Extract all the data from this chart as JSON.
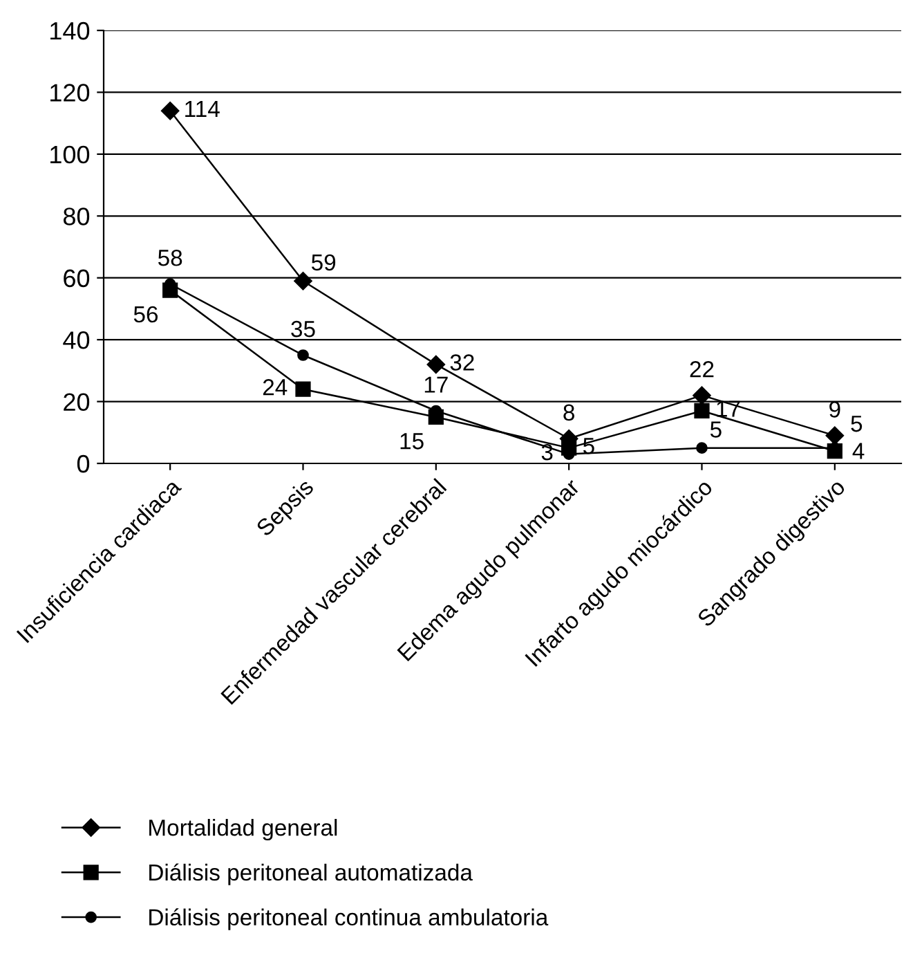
{
  "chart_data": {
    "type": "line",
    "categories": [
      "Insuficiencia cardiaca",
      "Sepsis",
      "Enfermedad vascular cerebral",
      "Edema agudo pulmonar",
      "Infarto agudo miocárdico",
      "Sangrado digestivo"
    ],
    "series": [
      {
        "name": "Mortalidad general",
        "color": "#000000",
        "marker": "diamond",
        "values": [
          114,
          59,
          32,
          8,
          22,
          9
        ]
      },
      {
        "name": "Diálisis peritoneal automatizada",
        "color": "#000000",
        "marker": "square",
        "values": [
          56,
          24,
          15,
          5,
          17,
          4
        ]
      },
      {
        "name": "Diálisis peritoneal continua ambulatoria",
        "color": "#000000",
        "marker": "circle",
        "values": [
          58,
          35,
          17,
          3,
          5,
          5
        ]
      }
    ],
    "ylim": [
      0,
      140
    ],
    "yticks": [
      0,
      20,
      40,
      60,
      80,
      100,
      120,
      140
    ],
    "grid": "y",
    "legend": "bottom",
    "data_labels": true,
    "line_style": "solid"
  }
}
